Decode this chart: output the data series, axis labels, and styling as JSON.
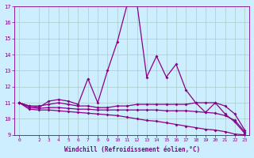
{
  "title": "",
  "xlabel": "Windchill (Refroidissement éolien,°C)",
  "ylabel": "",
  "background_color": "#cceeff",
  "grid_color": "#aacccc",
  "line_color": "#880088",
  "x": [
    0,
    1,
    2,
    3,
    4,
    5,
    6,
    7,
    8,
    9,
    10,
    11,
    12,
    13,
    14,
    15,
    16,
    17,
    18,
    19,
    20,
    21,
    22,
    23
  ],
  "line1": [
    11.0,
    10.8,
    10.7,
    11.1,
    11.2,
    11.1,
    10.9,
    12.5,
    11.0,
    13.0,
    14.8,
    17.1,
    17.2,
    12.6,
    13.9,
    12.6,
    13.4,
    11.8,
    11.0,
    10.4,
    11.0,
    10.3,
    9.8,
    9.1
  ],
  "line2": [
    11.0,
    10.8,
    10.8,
    10.9,
    11.0,
    10.9,
    10.8,
    10.8,
    10.7,
    10.7,
    10.8,
    10.8,
    10.9,
    10.9,
    10.9,
    10.9,
    10.9,
    10.9,
    11.0,
    11.0,
    11.0,
    10.8,
    10.3,
    9.3
  ],
  "line3": [
    11.0,
    10.7,
    10.65,
    10.7,
    10.7,
    10.65,
    10.6,
    10.6,
    10.55,
    10.55,
    10.55,
    10.55,
    10.55,
    10.55,
    10.55,
    10.5,
    10.5,
    10.5,
    10.45,
    10.4,
    10.35,
    10.2,
    9.9,
    9.2
  ],
  "line4": [
    11.0,
    10.6,
    10.55,
    10.55,
    10.5,
    10.45,
    10.4,
    10.35,
    10.3,
    10.25,
    10.2,
    10.1,
    10.0,
    9.9,
    9.85,
    9.75,
    9.65,
    9.55,
    9.45,
    9.35,
    9.3,
    9.2,
    9.05,
    9.0
  ],
  "ylim": [
    9,
    17
  ],
  "xlim": [
    -0.5,
    23.5
  ],
  "yticks": [
    9,
    10,
    11,
    12,
    13,
    14,
    15,
    16,
    17
  ],
  "xticks": [
    0,
    2,
    3,
    4,
    5,
    6,
    7,
    8,
    9,
    10,
    11,
    12,
    13,
    14,
    15,
    16,
    17,
    18,
    19,
    20,
    21,
    22,
    23
  ]
}
